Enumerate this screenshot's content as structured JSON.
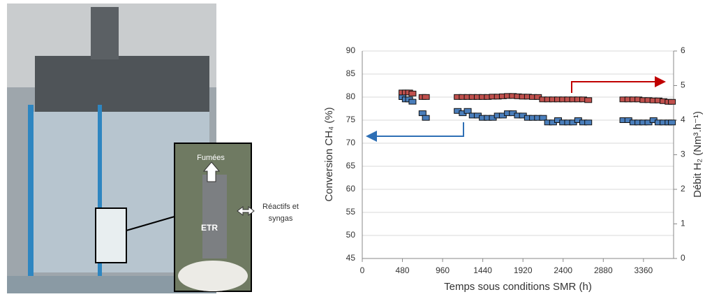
{
  "photo": {
    "labels": [
      "Fumées",
      "ETR",
      "Réactifs et",
      "syngas"
    ]
  },
  "chart_data": {
    "type": "scatter",
    "xlabel": "Temps sous conditions SMR (h)",
    "ylabel": "Conversion CH₄ (%)",
    "y2label": "Débit H₂ (Nm³.h⁻¹)",
    "x": [
      480,
      520,
      560,
      600,
      720,
      760,
      1140,
      1200,
      1260,
      1320,
      1380,
      1440,
      1500,
      1560,
      1620,
      1680,
      1740,
      1800,
      1860,
      1920,
      1980,
      2040,
      2100,
      2160,
      2220,
      2280,
      2340,
      2400,
      2460,
      2520,
      2580,
      2640,
      2700,
      3120,
      3180,
      3240,
      3300,
      3360,
      3420,
      3480,
      3540,
      3600,
      3660,
      3700
    ],
    "series": [
      {
        "name": "Conversion CH₄",
        "color": "#4a7ebb",
        "values": [
          80,
          79.5,
          79.5,
          79,
          76.5,
          75.5,
          77,
          76.5,
          77,
          76,
          76,
          75.5,
          75.5,
          75.5,
          76,
          76,
          76.5,
          76.5,
          76,
          76,
          75.5,
          75.5,
          75.5,
          75.5,
          74.5,
          74.5,
          75,
          74.5,
          74.5,
          74.5,
          75,
          74.5,
          74.5,
          75,
          75,
          74.5,
          74.5,
          74.5,
          74.5,
          75,
          74.5,
          74.5,
          74.5,
          74.5
        ]
      },
      {
        "name": "Débit H₂",
        "color": "#c0504d",
        "axis": "y2",
        "values": [
          4.8,
          4.8,
          4.8,
          4.77,
          4.67,
          4.67,
          4.67,
          4.67,
          4.67,
          4.67,
          4.67,
          4.67,
          4.67,
          4.68,
          4.68,
          4.69,
          4.7,
          4.7,
          4.69,
          4.68,
          4.68,
          4.67,
          4.67,
          4.6,
          4.6,
          4.6,
          4.6,
          4.6,
          4.6,
          4.6,
          4.6,
          4.6,
          4.58,
          4.6,
          4.6,
          4.6,
          4.6,
          4.58,
          4.58,
          4.57,
          4.57,
          4.55,
          4.53,
          4.53
        ]
      }
    ],
    "xlim": [
      0,
      3720
    ],
    "xticks": [
      0,
      480,
      960,
      1440,
      1920,
      2400,
      2880,
      3360
    ],
    "ylim": [
      45,
      90
    ],
    "yticks": [
      45,
      50,
      55,
      60,
      65,
      70,
      75,
      80,
      85,
      90
    ],
    "y2lim": [
      0,
      6
    ],
    "y2ticks": [
      0,
      1,
      2,
      3,
      4,
      5,
      6
    ],
    "grid": true
  }
}
